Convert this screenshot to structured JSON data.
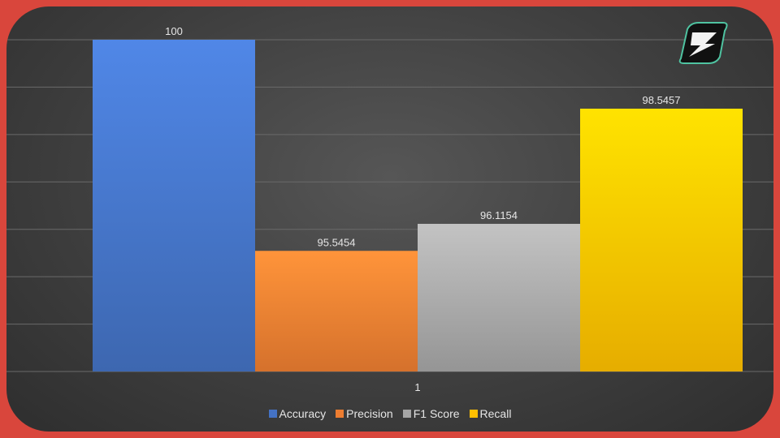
{
  "chart_data": {
    "type": "bar",
    "categories": [
      "1"
    ],
    "series": [
      {
        "name": "Accuracy",
        "values": [
          100
        ],
        "color": "#4472c4",
        "label": "100"
      },
      {
        "name": "Precision",
        "values": [
          95.5454
        ],
        "color": "#ed7d31",
        "label": "95.5454"
      },
      {
        "name": "F1 Score",
        "values": [
          96.1154
        ],
        "color": "#a5a5a5",
        "label": "96.1154"
      },
      {
        "name": "Recall",
        "values": [
          98.5457
        ],
        "color": "#ffc000",
        "label": "98.5457"
      }
    ],
    "ylim": [
      93,
      100
    ],
    "grid": true,
    "legend_position": "bottom"
  },
  "colors": {
    "frame": "#d9463c",
    "background": "#454545",
    "text": "#e6e6e6"
  },
  "logo": {
    "icon": "lightning-s-logo-icon"
  }
}
